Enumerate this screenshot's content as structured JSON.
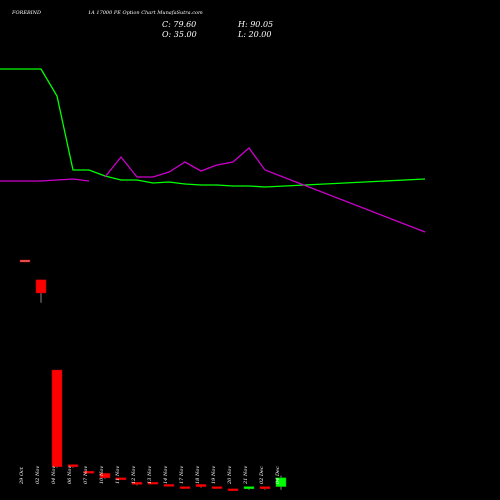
{
  "header": {
    "symbol": "FOREBIND",
    "description": "1A 17000 PE Option Chart Munafa",
    "watermark": "Sutra.com",
    "close": "C: 79.60",
    "open": "O: 35.00",
    "high": "H: 90.05",
    "low": "L: 20.00"
  },
  "chart_data": {
    "type": "candlestick",
    "categories": [
      "29 Oct",
      "02 Nov",
      "04 Nov",
      "06 Nov",
      "07 Nov",
      "10 Nov",
      "11 Nov",
      "12 Nov",
      "13 Nov",
      "14 Nov",
      "17 Nov",
      "18 Nov",
      "19 Nov",
      "20 Nov",
      "21 Nov",
      "02 Dec",
      "04 Dec"
    ],
    "candles": [
      {
        "open": 1.96,
        "close": 1.96,
        "high": 1.96,
        "low": 1.96
      },
      {
        "open": 1.87,
        "close": 1.81,
        "high": 1.87,
        "low": 1.77
      },
      {
        "open": 1.46,
        "close": 1.02,
        "high": 1.46,
        "low": 1.02
      },
      {
        "open": 1.03,
        "close": 1.02,
        "high": 1.03,
        "low": 1.02
      },
      {
        "open": 1.0,
        "close": 1.0,
        "high": 1.0,
        "low": 1.0
      },
      {
        "open": 0.99,
        "close": 0.97,
        "high": 0.99,
        "low": 0.97
      },
      {
        "open": 0.97,
        "close": 0.97,
        "high": 0.97,
        "low": 0.97
      },
      {
        "open": 0.95,
        "close": 0.94,
        "high": 0.95,
        "low": 0.94
      },
      {
        "open": 0.95,
        "close": 0.95,
        "high": 0.95,
        "low": 0.95
      },
      {
        "open": 0.94,
        "close": 0.94,
        "high": 0.94,
        "low": 0.94
      },
      {
        "open": 0.93,
        "close": 0.93,
        "high": 0.93,
        "low": 0.93
      },
      {
        "open": 0.94,
        "close": 0.93,
        "high": 0.94,
        "low": 0.93
      },
      {
        "open": 0.93,
        "close": 0.93,
        "high": 0.93,
        "low": 0.93
      },
      {
        "open": 0.92,
        "close": 0.92,
        "high": 0.92,
        "low": 0.92
      },
      {
        "open": 0.92,
        "close": 0.93,
        "high": 0.93,
        "low": 0.92
      },
      {
        "open": 0.93,
        "close": 0.92,
        "high": 0.93,
        "low": 0.92
      },
      {
        "open": 0.93,
        "close": 0.97,
        "high": 0.98,
        "low": 0.92
      }
    ],
    "price_lines": [
      {
        "color": "#00ff00",
        "values": [
          69,
          69,
          96,
          170,
          170,
          176,
          180,
          180,
          183,
          182,
          184,
          185,
          185,
          186,
          186,
          187,
          179
        ]
      },
      {
        "color": "#cc00cc",
        "values": [
          null,
          null,
          null,
          null,
          null,
          177,
          157,
          177,
          177,
          172,
          162,
          171,
          165,
          162,
          148,
          170,
          232
        ]
      },
      {
        "color": "#cc00cc",
        "values": [
          181,
          181,
          180,
          179,
          181,
          null,
          null,
          null,
          null,
          null,
          null,
          null,
          null,
          null,
          null,
          null,
          null
        ]
      },
      {
        "color": "#00cc00",
        "values": [
          null,
          null,
          null,
          null,
          null,
          null,
          null,
          null,
          null,
          null,
          null,
          null,
          null,
          null,
          null,
          null,
          null
        ]
      }
    ],
    "colors": {
      "up": "#00ff00",
      "down": "#ff0000",
      "flat": "#ff6666"
    }
  }
}
